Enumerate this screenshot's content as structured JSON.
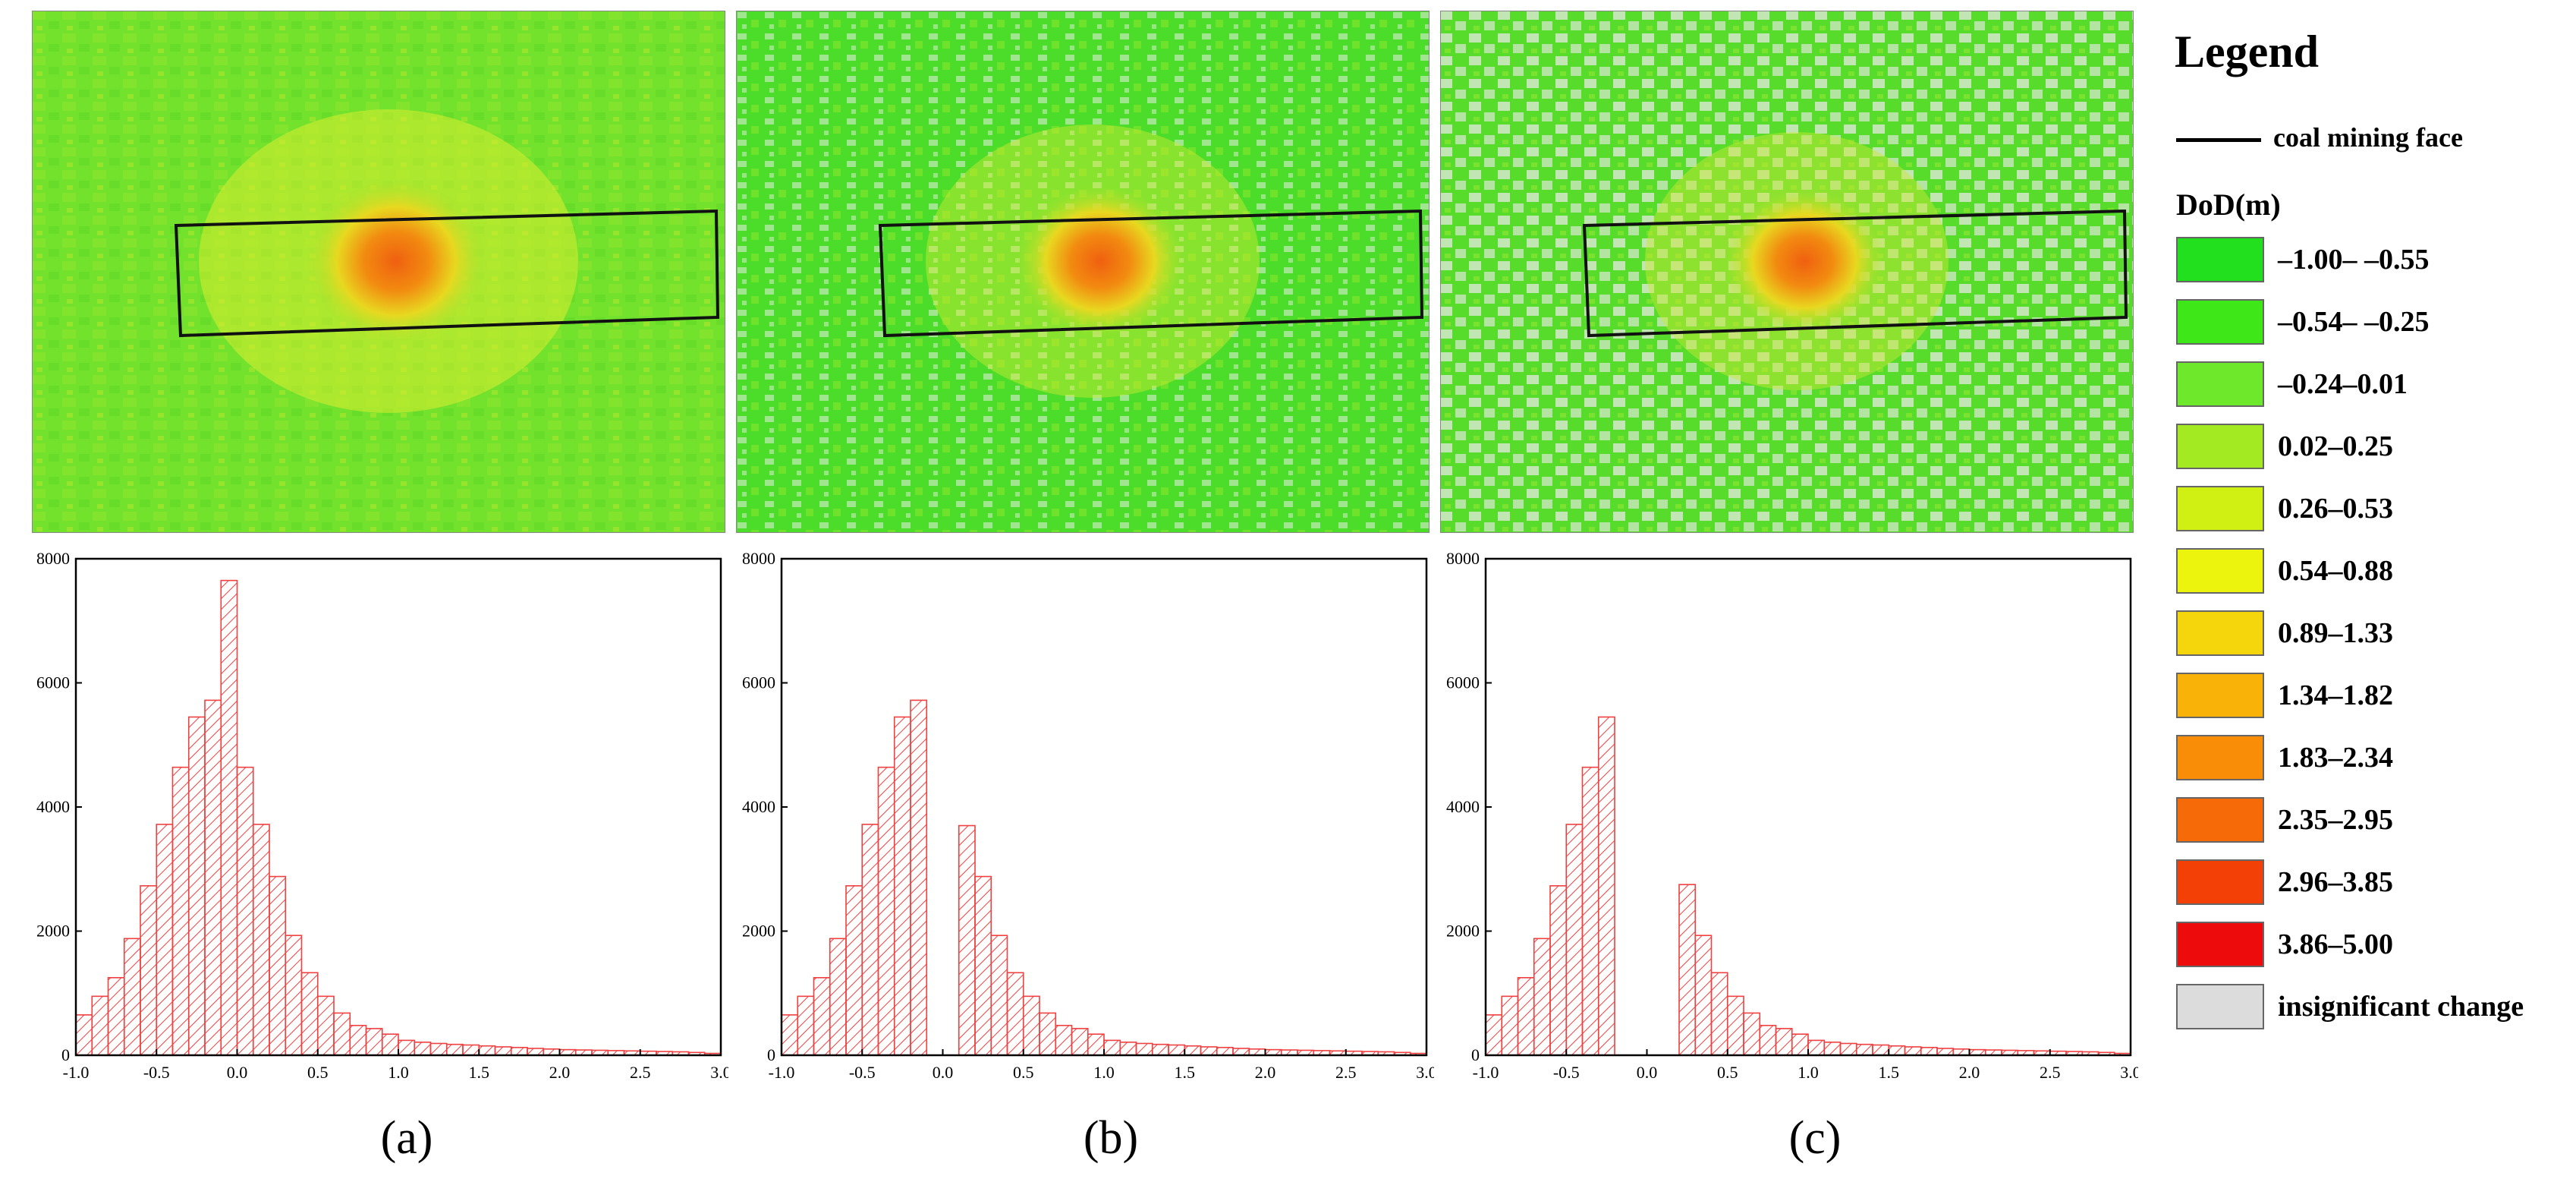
{
  "legend": {
    "title": "Legend",
    "line_label": "coal mining face",
    "dod_title": "DoD(m)",
    "classes": [
      {
        "label": "–1.00– –0.55",
        "color": "#22e01e"
      },
      {
        "label": "–0.54– –0.25",
        "color": "#3ee818"
      },
      {
        "label": "–0.24–0.01",
        "color": "#6ee82a"
      },
      {
        "label": "0.02–0.25",
        "color": "#a4ea22"
      },
      {
        "label": "0.26–0.53",
        "color": "#cff012"
      },
      {
        "label": "0.54–0.88",
        "color": "#ecf40e"
      },
      {
        "label": "0.89–1.33",
        "color": "#f5d60c"
      },
      {
        "label": "1.34–1.82",
        "color": "#f9b208"
      },
      {
        "label": "1.83–2.34",
        "color": "#f98d08"
      },
      {
        "label": "2.35–2.95",
        "color": "#f66a08"
      },
      {
        "label": "2.96–3.85",
        "color": "#f24006"
      },
      {
        "label": "3.86–5.00",
        "color": "#ee0b0b"
      },
      {
        "label": "insignificant  change",
        "color": "#dcdcdc"
      }
    ]
  },
  "captions": [
    "(a)",
    "(b)",
    "(c)"
  ],
  "colors": {
    "bar_stroke": "#f04040",
    "hatch": "#f04040",
    "map_green": "#55e02a",
    "map_orange": "#f07010",
    "map_gray": "#d8e8d0"
  },
  "chart_data": [
    {
      "type": "bar",
      "panel": "a",
      "title": "",
      "xlabel": "",
      "ylabel": "",
      "xlim": [
        -1.0,
        3.0
      ],
      "ylim": [
        0,
        8000
      ],
      "x_ticks": [
        "-1.0",
        "-0.5",
        "0.0",
        "0.5",
        "1.0",
        "1.5",
        "2.0",
        "2.5",
        "3.0"
      ],
      "y_ticks": [
        "0",
        "2000",
        "4000",
        "6000",
        "8000"
      ],
      "bin_width": 0.1,
      "bin_starts": [
        -1.0,
        -0.9,
        -0.8,
        -0.7,
        -0.6,
        -0.5,
        -0.4,
        -0.3,
        -0.2,
        -0.1,
        0.0,
        0.1,
        0.2,
        0.3,
        0.4,
        0.5,
        0.6,
        0.7,
        0.8,
        0.9,
        1.0,
        1.1,
        1.2,
        1.3,
        1.4,
        1.5,
        1.6,
        1.7,
        1.8,
        1.9,
        2.0,
        2.1,
        2.2,
        2.3,
        2.4,
        2.5,
        2.6,
        2.7,
        2.8,
        2.9
      ],
      "values": [
        650,
        950,
        1250,
        1880,
        2730,
        3720,
        4640,
        5450,
        5720,
        7650,
        4640,
        3720,
        2880,
        1930,
        1330,
        950,
        680,
        480,
        430,
        340,
        240,
        210,
        190,
        175,
        165,
        150,
        135,
        125,
        110,
        100,
        90,
        85,
        80,
        75,
        70,
        65,
        60,
        55,
        45,
        30
      ]
    },
    {
      "type": "bar",
      "panel": "b",
      "title": "",
      "xlabel": "",
      "ylabel": "",
      "xlim": [
        -1.0,
        3.0
      ],
      "ylim": [
        0,
        8000
      ],
      "x_ticks": [
        "-1.0",
        "-0.5",
        "0.0",
        "0.5",
        "1.0",
        "1.5",
        "2.0",
        "2.5",
        "3.0"
      ],
      "y_ticks": [
        "0",
        "2000",
        "4000",
        "6000",
        "8000"
      ],
      "bin_width": 0.1,
      "bin_starts": [
        -1.0,
        -0.9,
        -0.8,
        -0.7,
        -0.6,
        -0.5,
        -0.4,
        -0.3,
        -0.2,
        -0.1,
        0.0,
        0.1,
        0.2,
        0.3,
        0.4,
        0.5,
        0.6,
        0.7,
        0.8,
        0.9,
        1.0,
        1.1,
        1.2,
        1.3,
        1.4,
        1.5,
        1.6,
        1.7,
        1.8,
        1.9,
        2.0,
        2.1,
        2.2,
        2.3,
        2.4,
        2.5,
        2.6,
        2.7,
        2.8,
        2.9
      ],
      "values": [
        650,
        950,
        1250,
        1880,
        2730,
        3720,
        4640,
        5450,
        5720,
        0,
        0,
        3700,
        2880,
        1930,
        1330,
        950,
        680,
        480,
        430,
        340,
        240,
        210,
        190,
        175,
        165,
        150,
        135,
        125,
        110,
        100,
        90,
        85,
        80,
        75,
        70,
        65,
        60,
        55,
        45,
        30
      ]
    },
    {
      "type": "bar",
      "panel": "c",
      "title": "",
      "xlabel": "",
      "ylabel": "",
      "xlim": [
        -1.0,
        3.0
      ],
      "ylim": [
        0,
        8000
      ],
      "x_ticks": [
        "-1.0",
        "-0.5",
        "0.0",
        "0.5",
        "1.0",
        "1.5",
        "2.0",
        "2.5",
        "3.0"
      ],
      "y_ticks": [
        "0",
        "2000",
        "4000",
        "6000",
        "8000"
      ],
      "bin_width": 0.1,
      "bin_starts": [
        -1.0,
        -0.9,
        -0.8,
        -0.7,
        -0.6,
        -0.5,
        -0.4,
        -0.3,
        -0.2,
        -0.1,
        0.0,
        0.1,
        0.2,
        0.3,
        0.4,
        0.5,
        0.6,
        0.7,
        0.8,
        0.9,
        1.0,
        1.1,
        1.2,
        1.3,
        1.4,
        1.5,
        1.6,
        1.7,
        1.8,
        1.9,
        2.0,
        2.1,
        2.2,
        2.3,
        2.4,
        2.5,
        2.6,
        2.7,
        2.8,
        2.9
      ],
      "values": [
        650,
        950,
        1250,
        1880,
        2730,
        3720,
        4640,
        5450,
        0,
        0,
        0,
        0,
        2750,
        1930,
        1330,
        950,
        680,
        480,
        430,
        340,
        240,
        210,
        190,
        175,
        165,
        150,
        135,
        125,
        110,
        100,
        90,
        85,
        80,
        75,
        70,
        65,
        60,
        55,
        45,
        30
      ]
    }
  ]
}
